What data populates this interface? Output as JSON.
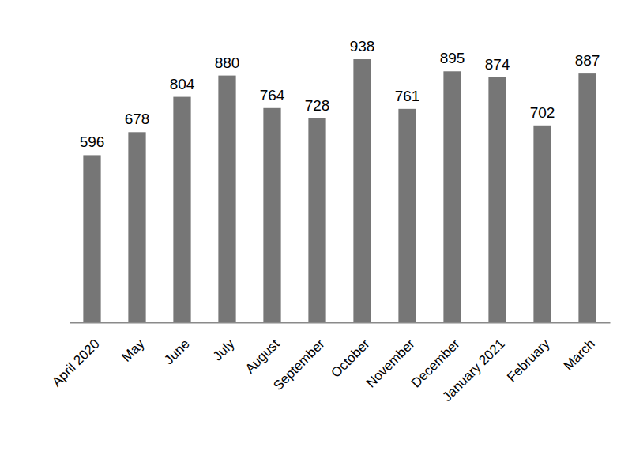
{
  "chart_data": {
    "type": "bar",
    "categories": [
      "April 2020",
      "May",
      "June",
      "July",
      "August",
      "September",
      "October",
      "November",
      "December",
      "January 2021",
      "February",
      "March"
    ],
    "values": [
      596,
      678,
      804,
      880,
      764,
      728,
      938,
      761,
      895,
      874,
      702,
      887
    ],
    "color": "#767676",
    "ylim": [
      0,
      1000
    ],
    "yticks": [],
    "data_labels": true,
    "tick_labels": "x"
  }
}
